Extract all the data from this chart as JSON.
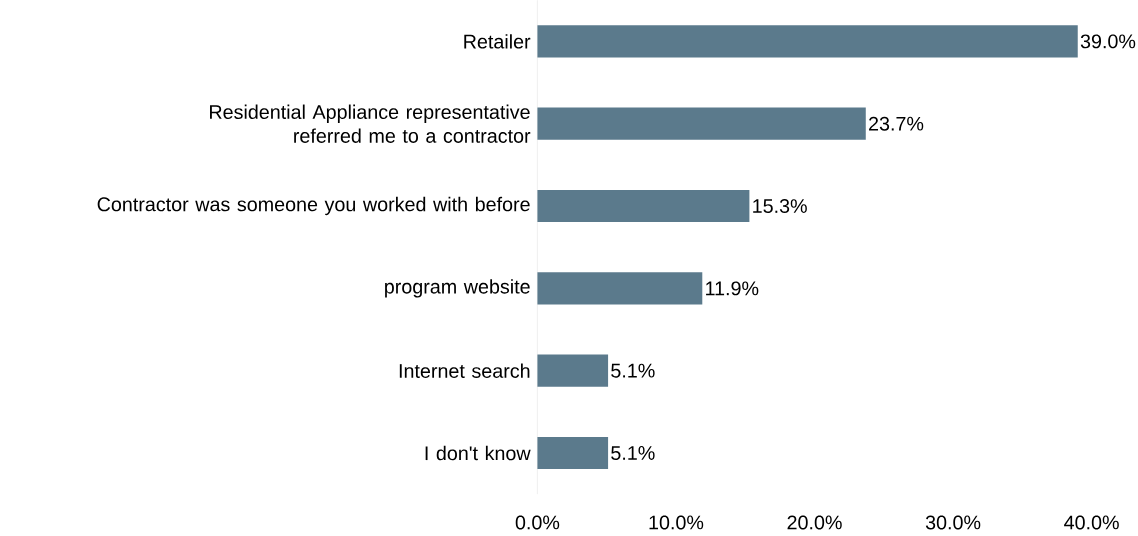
{
  "chart_data": {
    "type": "bar",
    "orientation": "horizontal",
    "categories": [
      "Retailer",
      "Residential Appliance representative referred me to a contractor",
      "Contractor was someone you worked with before",
      "program website",
      "Internet search",
      "I don't know"
    ],
    "values": [
      39.0,
      23.7,
      15.3,
      11.9,
      5.1,
      5.1
    ],
    "value_labels": [
      "39.0%",
      "23.7%",
      "15.3%",
      "11.9%",
      "5.1%",
      "5.1%"
    ],
    "color": "#5b7a8c",
    "xlim": [
      0,
      40
    ],
    "xticks": [
      {
        "value": 0,
        "label": "0.0%"
      },
      {
        "value": 10,
        "label": "10.0%"
      },
      {
        "value": 20,
        "label": "20.0%"
      },
      {
        "value": 30,
        "label": "30.0%"
      },
      {
        "value": 40,
        "label": "40.0%"
      }
    ],
    "grid": false
  }
}
